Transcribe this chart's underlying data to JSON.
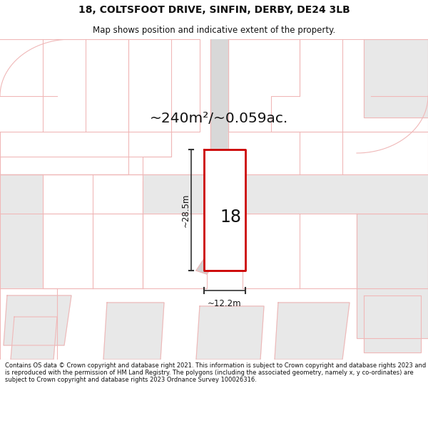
{
  "title_line1": "18, COLTSFOOT DRIVE, SINFIN, DERBY, DE24 3LB",
  "title_line2": "Map shows position and indicative extent of the property.",
  "area_label": "~240m²/~0.059ac.",
  "house_number": "18",
  "dim_height": "~28.5m",
  "dim_width": "~12.2m",
  "footer_text": "Contains OS data © Crown copyright and database right 2021. This information is subject to Crown copyright and database rights 2023 and is reproduced with the permission of HM Land Registry. The polygons (including the associated geometry, namely x, y co-ordinates) are subject to Crown copyright and database rights 2023 Ordnance Survey 100026316.",
  "bg_color": "#ffffff",
  "map_bg": "#ffffff",
  "road_fill": "#e8e8e8",
  "boundary_color": "#f0b8b8",
  "highlight_color": "#cc0000",
  "dim_line_color": "#333333",
  "text_color": "#111111",
  "plot_fill": "#f0f0f0"
}
